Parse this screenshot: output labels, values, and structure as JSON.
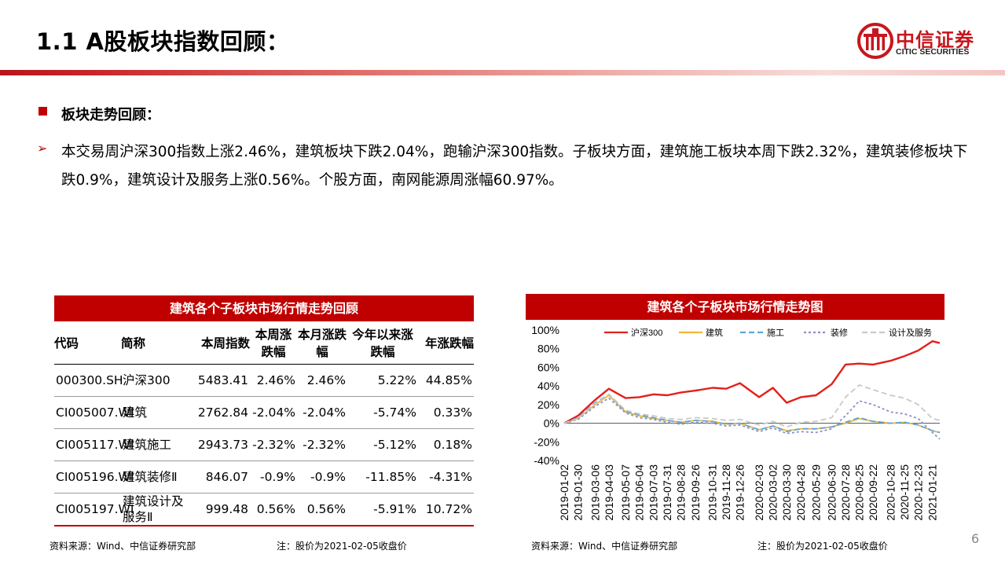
{
  "header": {
    "title": "1.1 A股板块指数回顾：",
    "logo_cn": "中信证券",
    "logo_en": "CITIC SECURITIES"
  },
  "section": {
    "heading": "板块走势回顾：",
    "paragraph": "本交易周沪深300指数上涨2.46%，建筑板块下跌2.04%，跑输沪深300指数。子板块方面，建筑施工板块本周下跌2.32%，建筑装修板块下跌0.9%，建筑设计及服务上涨0.56%。个股方面，南网能源周涨幅60.97%。"
  },
  "table": {
    "title": "建筑各个子板块市场行情走势回顾",
    "headers": [
      "代码",
      "简称",
      "本周指数",
      "本周涨跌幅",
      "本月涨跌幅",
      "今年以来涨跌幅",
      "年涨跌幅"
    ],
    "rows": [
      [
        "000300.SH",
        "沪深300",
        "5483.41",
        "2.46%",
        "2.46%",
        "5.22%",
        "44.85%"
      ],
      [
        "CI005007.WI",
        "建筑",
        "2762.84",
        "-2.04%",
        "-2.04%",
        "-5.74%",
        "0.33%"
      ],
      [
        "CI005117.WI",
        "建筑施工",
        "2943.73",
        "-2.32%",
        "-2.32%",
        "-5.12%",
        "0.18%"
      ],
      [
        "CI005196.WI",
        "建筑装修Ⅱ",
        "846.07",
        "-0.9%",
        "-0.9%",
        "-11.85%",
        "-4.31%"
      ],
      [
        "CI005197.WI",
        "建筑设计及服务Ⅱ",
        "999.48",
        "0.56%",
        "0.56%",
        "-5.91%",
        "10.72%"
      ]
    ],
    "source": "资料来源：Wind、中信证券研究部",
    "note": "注：股价为2021-02-05收盘价"
  },
  "chart_data": {
    "type": "line",
    "title": "建筑各个子板块市场行情走势图",
    "yticks": [
      "100%",
      "80%",
      "60%",
      "40%",
      "20%",
      "0%",
      "-20%",
      "-40%"
    ],
    "ylim": [
      -40,
      100
    ],
    "grid": false,
    "legend_position": "top",
    "x_tick_labels": [
      "2019-01-02",
      "2019-01-30",
      "2019-03-06",
      "2019-04-03",
      "2019-05-07",
      "2019-06-04",
      "2019-07-03",
      "2019-07-31",
      "2019-08-28",
      "2019-09-26",
      "2019-10-31",
      "2019-11-28",
      "2019-12-26",
      "2020-02-03",
      "2020-03-02",
      "2020-03-30",
      "2020-04-28",
      "2020-05-29",
      "2020-06-30",
      "2020-07-28",
      "2020-08-25",
      "2020-09-22",
      "2020-10-28",
      "2020-11-25",
      "2020-12-23",
      "2021-01-21"
    ],
    "x": [
      "2019-01-02",
      "2019-01-30",
      "2019-03-06",
      "2019-04-03",
      "2019-05-07",
      "2019-06-04",
      "2019-07-03",
      "2019-07-31",
      "2019-08-28",
      "2019-09-26",
      "2019-10-31",
      "2019-11-28",
      "2019-12-26",
      "2020-02-03",
      "2020-03-02",
      "2020-03-30",
      "2020-04-28",
      "2020-05-29",
      "2020-06-30",
      "2020-07-28",
      "2020-08-25",
      "2020-09-22",
      "2020-10-28",
      "2020-11-25",
      "2020-12-23",
      "2021-01-21",
      "2021-02-05"
    ],
    "series": [
      {
        "name": "沪深300",
        "color": "#e3201b",
        "dash": "",
        "values": [
          0,
          8,
          25,
          37,
          27,
          28,
          31,
          30,
          33,
          35,
          38,
          37,
          43,
          28,
          38,
          22,
          28,
          30,
          42,
          63,
          64,
          63,
          67,
          72,
          78,
          88,
          86
        ]
      },
      {
        "name": "建筑",
        "color": "#f2b731",
        "dash": "",
        "values": [
          0,
          5,
          20,
          30,
          12,
          8,
          5,
          3,
          1,
          3,
          2,
          -1,
          0,
          -7,
          -3,
          -8,
          -6,
          -6,
          -4,
          0,
          5,
          2,
          0,
          1,
          -2,
          -8,
          -10
        ]
      },
      {
        "name": "施工",
        "color": "#5aa7dc",
        "dash": "7 4",
        "values": [
          0,
          6,
          22,
          31,
          13,
          9,
          6,
          3,
          1,
          3,
          2,
          -1,
          0,
          -7,
          -3,
          -9,
          -6,
          -6,
          -4,
          1,
          6,
          2,
          0,
          1,
          -2,
          -8,
          -10
        ]
      },
      {
        "name": "装修",
        "color": "#8b8fc8",
        "dash": "3 3",
        "values": [
          0,
          4,
          18,
          27,
          11,
          6,
          4,
          1,
          -1,
          1,
          0,
          -3,
          -2,
          -9,
          -5,
          -11,
          -9,
          -10,
          -6,
          8,
          24,
          20,
          12,
          10,
          5,
          -10,
          -17
        ]
      },
      {
        "name": "设计及服务",
        "color": "#c9c9c9",
        "dash": "7 4",
        "values": [
          0,
          5,
          21,
          31,
          14,
          10,
          8,
          5,
          4,
          6,
          5,
          3,
          4,
          -2,
          2,
          -4,
          1,
          2,
          6,
          28,
          41,
          36,
          30,
          27,
          20,
          5,
          3
        ]
      }
    ],
    "source": "资料来源：Wind、中信证券研究部",
    "note": "注：股价为2021-02-05收盘价"
  },
  "page_number": "6",
  "colors": {
    "accent": "#c00000",
    "brand": "#c8161d"
  }
}
